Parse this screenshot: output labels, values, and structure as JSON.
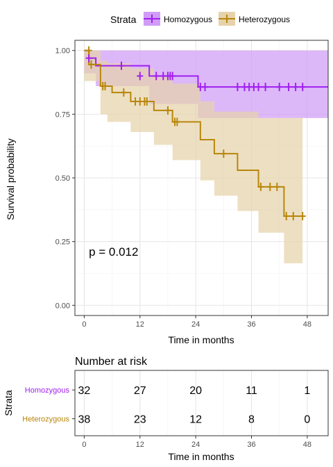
{
  "chart_data": {
    "type": "line",
    "subtype": "kaplan-meier",
    "ylabel": "Survival probability",
    "xlabel": "Time in months",
    "xticks": [
      0,
      12,
      24,
      36,
      48
    ],
    "yticks": [
      "0.00",
      "0.25",
      "0.50",
      "0.75",
      "1.00"
    ],
    "xlim": [
      -2,
      52.5
    ],
    "ylim": [
      -0.04,
      1.04
    ],
    "grid": true,
    "legend": {
      "title": "Strata",
      "position": "top",
      "entries": [
        "Homozygous",
        "Heterozygous"
      ]
    },
    "annotation": "p = 0.012",
    "annotation_at": {
      "x": 1,
      "y": 0.195
    },
    "series": [
      {
        "name": "Homozygous",
        "color": "#a020f0",
        "band_color": "#d09cf6",
        "steps": [
          [
            0,
            1.0
          ],
          [
            1,
            0.97
          ],
          [
            2.5,
            0.94
          ],
          [
            14,
            0.9
          ],
          [
            24.5,
            0.857
          ]
        ],
        "x_end": 52.5,
        "band": [
          [
            0,
            0.91,
            1.0
          ],
          [
            2.5,
            0.86,
            1.0
          ],
          [
            14,
            0.79,
            1.0
          ],
          [
            24.5,
            0.735,
            1.0
          ]
        ],
        "band_end": 52.5,
        "censored": [
          [
            1,
            0.97
          ],
          [
            8,
            0.94
          ],
          [
            12,
            0.9
          ],
          [
            15.5,
            0.9
          ],
          [
            17,
            0.9
          ],
          [
            18,
            0.9
          ],
          [
            18.5,
            0.9
          ],
          [
            19,
            0.9
          ],
          [
            25,
            0.857
          ],
          [
            26,
            0.857
          ],
          [
            33,
            0.857
          ],
          [
            34.5,
            0.857
          ],
          [
            35.5,
            0.857
          ],
          [
            36.5,
            0.857
          ],
          [
            37.5,
            0.857
          ],
          [
            39,
            0.857
          ],
          [
            42,
            0.857
          ],
          [
            44,
            0.857
          ],
          [
            45.5,
            0.857
          ],
          [
            47,
            0.857
          ]
        ]
      },
      {
        "name": "Heterozygous",
        "color": "#b8860b",
        "band_color": "#e6d3ab",
        "steps": [
          [
            0,
            1.0
          ],
          [
            1,
            0.945
          ],
          [
            3.5,
            0.86
          ],
          [
            6,
            0.835
          ],
          [
            10,
            0.8
          ],
          [
            15,
            0.765
          ],
          [
            19,
            0.72
          ],
          [
            25,
            0.65
          ],
          [
            28,
            0.595
          ],
          [
            33,
            0.53
          ],
          [
            37.5,
            0.465
          ],
          [
            43,
            0.35
          ]
        ],
        "x_end": 47,
        "band": [
          [
            0,
            0.88,
            1.0
          ],
          [
            3.5,
            0.75,
            0.96
          ],
          [
            5,
            0.72,
            0.95
          ],
          [
            10,
            0.68,
            0.93
          ],
          [
            15,
            0.63,
            0.9
          ],
          [
            19,
            0.57,
            0.87
          ],
          [
            25,
            0.49,
            0.8
          ],
          [
            28,
            0.43,
            0.76
          ],
          [
            33,
            0.37,
            0.76
          ],
          [
            37.5,
            0.285,
            0.735
          ],
          [
            43,
            0.165,
            0.735
          ]
        ],
        "band_end": 47,
        "censored": [
          [
            1,
            1.0
          ],
          [
            1.5,
            0.945
          ],
          [
            4,
            0.86
          ],
          [
            4.5,
            0.86
          ],
          [
            8.5,
            0.835
          ],
          [
            11,
            0.8
          ],
          [
            12,
            0.8
          ],
          [
            13,
            0.8
          ],
          [
            13.5,
            0.8
          ],
          [
            18,
            0.765
          ],
          [
            19.5,
            0.72
          ],
          [
            20,
            0.72
          ],
          [
            30,
            0.595
          ],
          [
            38,
            0.465
          ],
          [
            40,
            0.465
          ],
          [
            41.5,
            0.465
          ],
          [
            43.5,
            0.35
          ],
          [
            45,
            0.35
          ],
          [
            47,
            0.35
          ]
        ]
      }
    ]
  },
  "risk_table": {
    "title": "Number at risk",
    "ylabel": "Strata",
    "xlabel": "Time in months",
    "xticks": [
      0,
      12,
      24,
      36,
      48
    ],
    "rows": [
      {
        "name": "Homozygous",
        "color": "#a020f0",
        "values": [
          32,
          27,
          20,
          11,
          1
        ]
      },
      {
        "name": "Heterozygous",
        "color": "#b8860b",
        "values": [
          38,
          23,
          12,
          8,
          0
        ]
      }
    ]
  }
}
